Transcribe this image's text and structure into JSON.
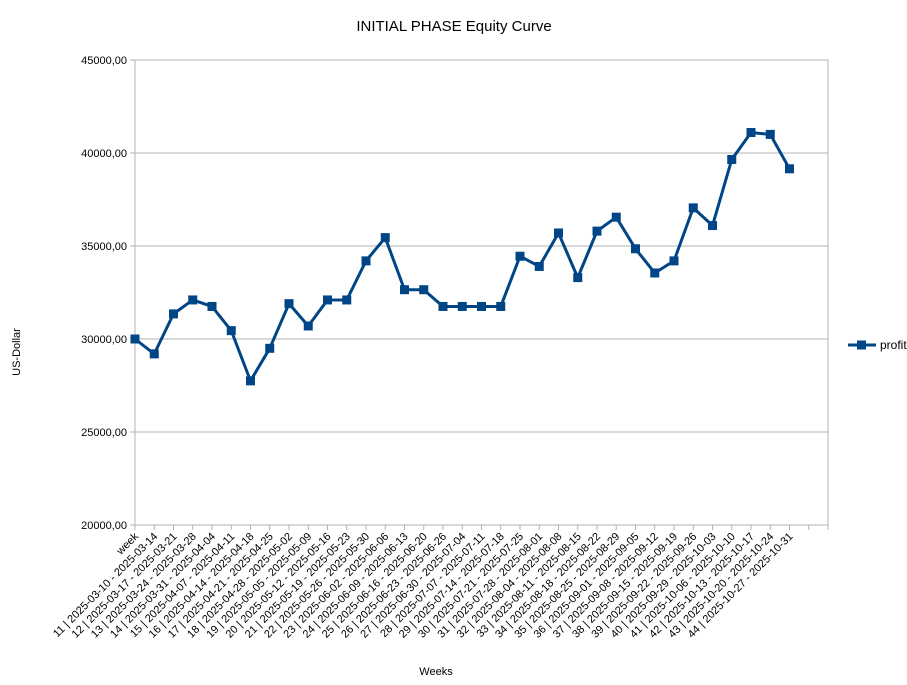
{
  "chart_data": {
    "type": "line",
    "title": "INITIAL PHASE Equity Curve",
    "xlabel": "Weeks",
    "ylabel": "US-Dollar",
    "ylim": [
      20000,
      45000
    ],
    "y_ticks": [
      "20000,00",
      "25000,00",
      "30000,00",
      "35000,00",
      "40000,00",
      "45000,00"
    ],
    "grid": "horizontal",
    "legend_position": "right",
    "categories": [
      "week",
      "11 | 2025-03-10 - 2025-03-14",
      "12 | 2025-03-17 - 2025-03-21",
      "13 | 2025-03-24 - 2025-03-28",
      "14 | 2025-03-31 - 2025-04-04",
      "15 | 2025-04-07 - 2025-04-11",
      "16 | 2025-04-14 - 2025-04-18",
      "17 | 2025-04-21 - 2025-04-25",
      "18 | 2025-04-28 - 2025-05-02",
      "19 | 2025-05-05 - 2025-05-09",
      "20 | 2025-05-12 - 2025-05-16",
      "21 | 2025-05-19 - 2025-05-23",
      "22 | 2025-05-26 - 2025-05-30",
      "23 | 2025-06-02 - 2025-06-06",
      "24 | 2025-06-09 - 2025-06-13",
      "25 | 2025-06-16 - 2025-06-20",
      "26 | 2025-06-23 - 2025-06-26",
      "27 | 2025-06-30 - 2025-07-04",
      "28 | 2025-07-07 - 2025-07-11",
      "29 | 2025-07-14 - 2025-07-18",
      "30 | 2025-07-21 - 2025-07-25",
      "31 | 2025-07-28 - 2025-08-01",
      "32 | 2025-08-04 - 2025-08-08",
      "33 | 2025-08-11 - 2025-08-15",
      "34 | 2025-08-18 - 2025-08-22",
      "35 | 2025-08-25 - 2025-08-29",
      "36 | 2025-09-01 - 2025-09-05",
      "37 | 2025-09-08 - 2025-09-12",
      "38 | 2025-09-15 - 2025-09-19",
      "39 | 2025-09-22 - 2025-09-26",
      "40 | 2025-09-29 - 2025-10-03",
      "41 | 2025-10-06 - 2025-10-10",
      "42 | 2025-10-13 - 2025-10-17",
      "43 | 2025-10-20 - 2025-10-24",
      "44 | 2025-10-27 - 2025-10-31"
    ],
    "series": [
      {
        "name": "profit",
        "color": "#004586",
        "values": [
          30000,
          29200,
          31350,
          32100,
          31750,
          30450,
          27750,
          29500,
          31900,
          30700,
          32100,
          32100,
          34200,
          35450,
          32650,
          32650,
          31750,
          31750,
          31750,
          31750,
          34450,
          33900,
          35700,
          33300,
          35800,
          36550,
          34850,
          33550,
          34200,
          37050,
          36100,
          39650,
          41100,
          41000,
          39150
        ]
      }
    ]
  }
}
